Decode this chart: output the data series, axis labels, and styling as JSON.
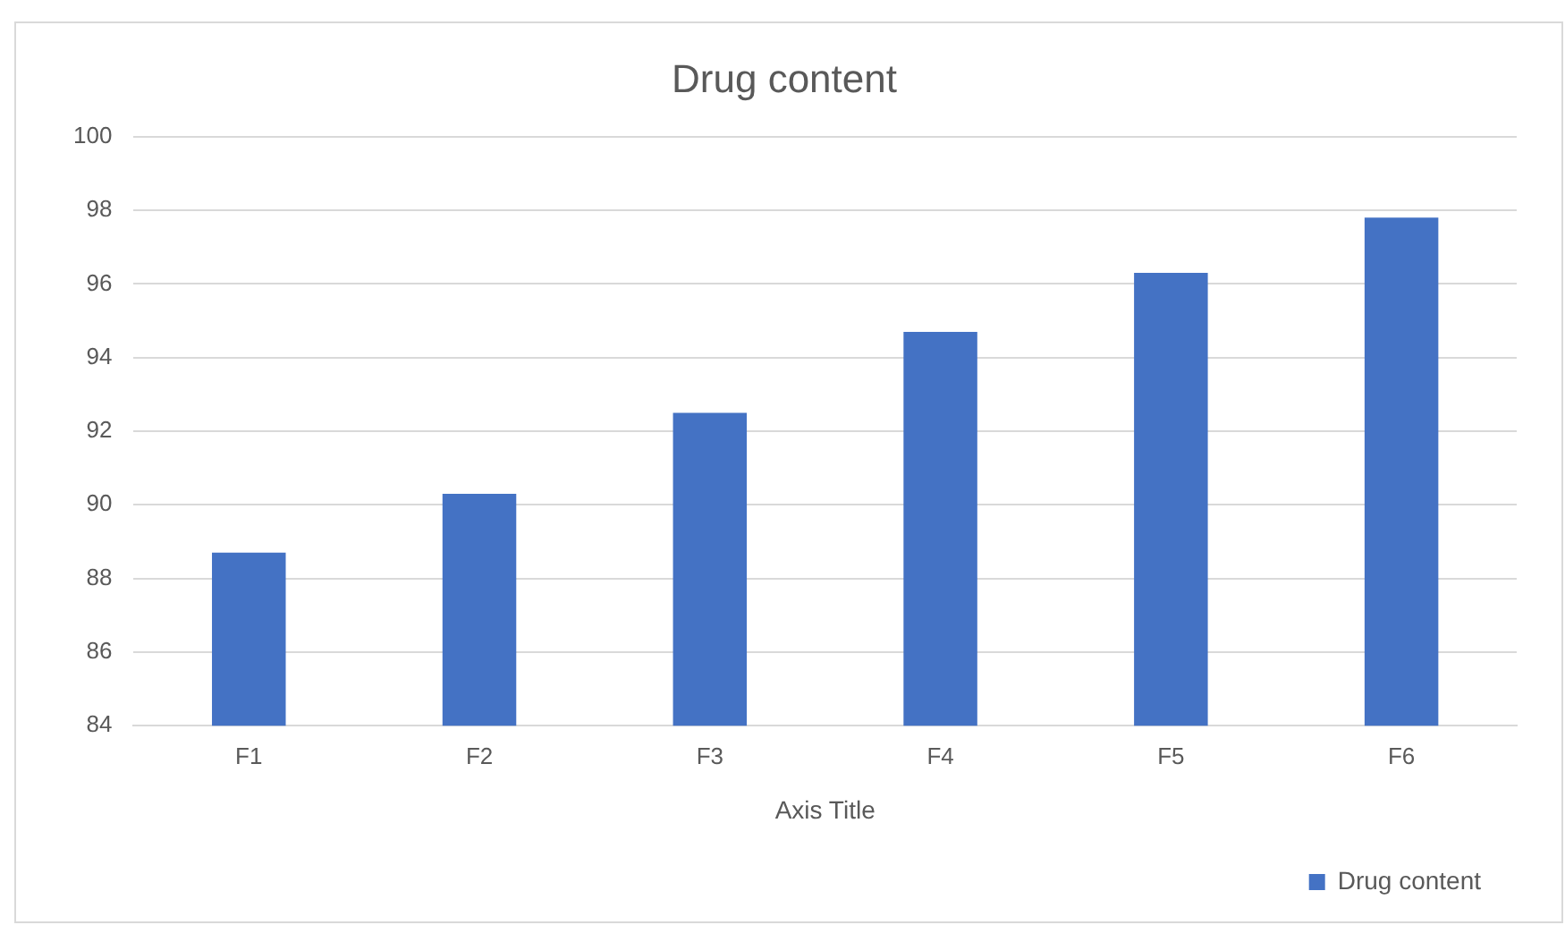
{
  "chart_data": {
    "type": "bar",
    "title": "Drug content",
    "xlabel": "Axis Title",
    "categories": [
      "F1",
      "F2",
      "F3",
      "F4",
      "F5",
      "F6"
    ],
    "series": [
      {
        "name": "Drug content",
        "color": "#4472c4",
        "values": [
          88.7,
          90.3,
          92.5,
          94.7,
          96.3,
          97.8
        ]
      }
    ],
    "ylim": [
      84,
      100
    ],
    "yticks": [
      84,
      86,
      88,
      90,
      92,
      94,
      96,
      98,
      100
    ],
    "grid": "y",
    "legend": "bottom right"
  }
}
